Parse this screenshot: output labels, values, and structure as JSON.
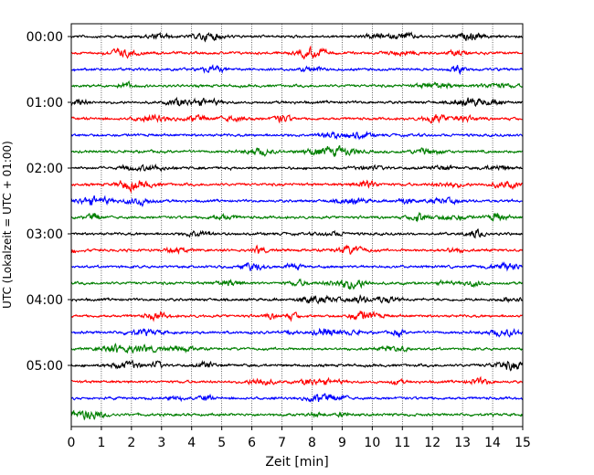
{
  "chart_data": {
    "type": "line",
    "title": "",
    "xlabel": "Zeit  [min]",
    "ylabel": "UTC (Lokalzeit = UTC + 01:00)",
    "xlim": [
      0,
      15
    ],
    "x_ticks": [
      "0",
      "1",
      "2",
      "3",
      "4",
      "5",
      "6",
      "7",
      "8",
      "9",
      "10",
      "11",
      "12",
      "13",
      "14",
      "15"
    ],
    "y_ticks": [
      "00:00",
      "01:00",
      "02:00",
      "03:00",
      "04:00",
      "05:00"
    ],
    "row_interval_min": 15,
    "row_count": 24,
    "trace_colors": [
      "#000000",
      "#ff0000",
      "#0000ff",
      "#007f00"
    ],
    "grid_x": true,
    "grid_style": "dotted"
  }
}
